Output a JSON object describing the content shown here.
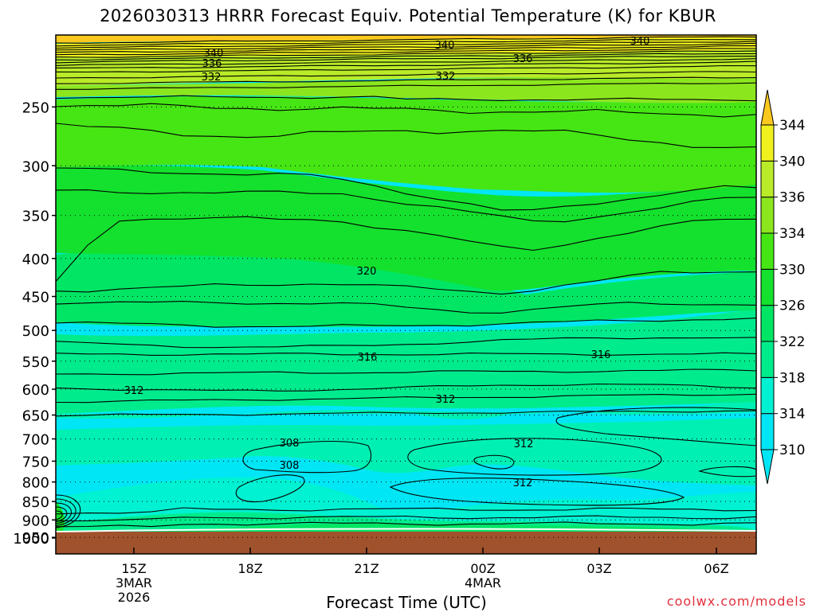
{
  "title": "2026030313 HRRR Forecast Equiv. Potential Temperature (K) for KBUR",
  "xlabel": "Forecast Time (UTC)",
  "credit": "coolwx.com/models",
  "colors": {
    "c310": "#00e6f5",
    "c312": "#00f2d2",
    "c314": "#00f0b4",
    "c318": "#00ec8c",
    "c322": "#00e664",
    "c326": "#14e12d",
    "c330": "#46e614",
    "c334": "#8ce61e",
    "c336": "#b9eb28",
    "c340": "#f0f01e",
    "c344": "#fac81e",
    "ground": "#a0522d",
    "contour": "#000000"
  },
  "chart_data": {
    "type": "heatmap",
    "title": "2026030313 HRRR Forecast Equiv. Potential Temperature (K) for KBUR",
    "xlabel": "Forecast Time (UTC)",
    "ylabel": "",
    "y_scale": "log-pressure",
    "y_range_hPa": [
      1000,
      200
    ],
    "x_ticks": [
      {
        "label": "15Z",
        "sub": [
          "3MAR",
          "2026"
        ]
      },
      {
        "label": "18Z",
        "sub": []
      },
      {
        "label": "21Z",
        "sub": []
      },
      {
        "label": "00Z",
        "sub": [
          "4MAR"
        ]
      },
      {
        "label": "03Z",
        "sub": []
      },
      {
        "label": "06Z",
        "sub": []
      }
    ],
    "y_ticks": [
      250,
      300,
      350,
      400,
      450,
      500,
      550,
      600,
      650,
      700,
      750,
      800,
      850,
      900,
      950,
      1000
    ],
    "colorbar_levels": [
      310,
      314,
      318,
      322,
      326,
      330,
      334,
      336,
      340,
      344
    ],
    "contour_labels": [
      "340",
      "340",
      "340",
      "336",
      "336",
      "332",
      "332",
      "320",
      "316",
      "316",
      "312",
      "312",
      "312",
      "312",
      "308",
      "308"
    ],
    "grid": true
  }
}
